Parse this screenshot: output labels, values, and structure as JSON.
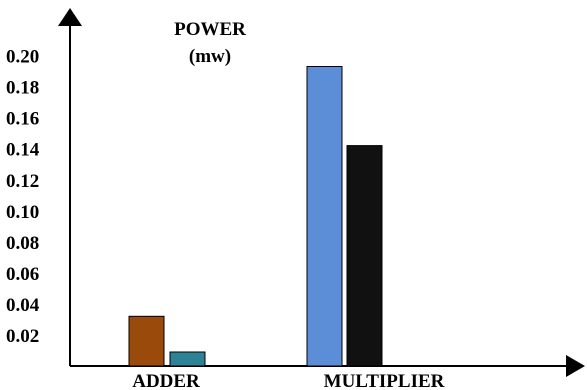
{
  "chart_data": {
    "type": "bar",
    "ylabel": "POWER",
    "yunit": "(mw)",
    "xlabel": "",
    "categories": [
      "ADDER",
      "MULTIPLIER"
    ],
    "ylim": [
      0,
      0.22
    ],
    "yticks": [
      "0.02",
      "0.04",
      "0.06",
      "0.08",
      "0.10",
      "0.12",
      "0.14",
      "0.16",
      "0.18",
      "0.20"
    ],
    "bars": [
      {
        "category": "ADDER",
        "value": 0.032,
        "color": "#9a4a0a"
      },
      {
        "category": "ADDER",
        "value": 0.009,
        "color": "#2e8296"
      },
      {
        "category": "MULTIPLIER",
        "value": 0.193,
        "color": "#5b8ed6"
      },
      {
        "category": "MULTIPLIER",
        "value": 0.142,
        "color": "#111111"
      }
    ],
    "grid": false
  }
}
